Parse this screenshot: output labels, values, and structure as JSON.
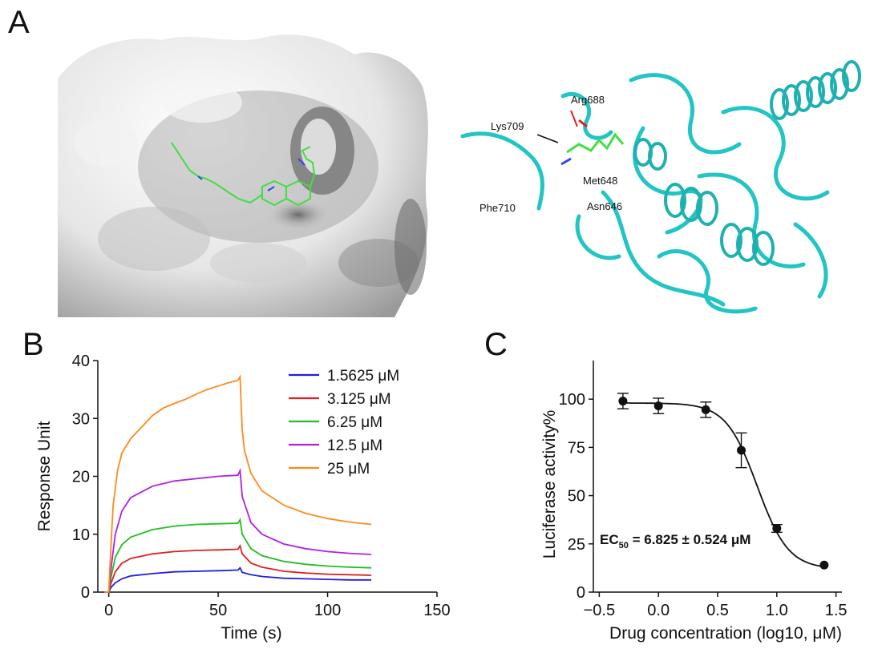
{
  "panels": {
    "a": "A",
    "b": "B",
    "c": "C"
  },
  "structure_labels": [
    "Arg688",
    "Lys709",
    "Met648",
    "Phe710",
    "Asn646"
  ],
  "colors": {
    "surface": "#d9d9d9",
    "protein": "#22c4c4",
    "ligand": "#44dd44",
    "nitrogen": "#3344ee",
    "oxygen": "#e02020"
  },
  "chart_data": [
    {
      "type": "line",
      "xlabel": "Time (s)",
      "ylabel": "Response Unit",
      "xlim": [
        -5,
        150
      ],
      "ylim": [
        0,
        40
      ],
      "xticks": [
        0,
        50,
        100,
        150
      ],
      "yticks": [
        0,
        10,
        20,
        30,
        40
      ],
      "legend_position": "top-right",
      "series": [
        {
          "name": "1.5625 μM",
          "color": "#1f1fe0",
          "x": [
            -2,
            0,
            1,
            3,
            6,
            10,
            20,
            30,
            40,
            50,
            59,
            60,
            61,
            65,
            70,
            80,
            90,
            100,
            110,
            120
          ],
          "y": [
            0,
            0,
            0.8,
            1.6,
            2.3,
            2.8,
            3.2,
            3.5,
            3.6,
            3.7,
            3.8,
            4.2,
            3.4,
            3.0,
            2.7,
            2.4,
            2.3,
            2.2,
            2.1,
            2.1
          ]
        },
        {
          "name": "3.125 μM",
          "color": "#e01f1f",
          "x": [
            -2,
            0,
            1,
            3,
            6,
            10,
            20,
            30,
            40,
            50,
            59,
            60,
            61,
            65,
            70,
            80,
            90,
            100,
            110,
            120
          ],
          "y": [
            0,
            0,
            1.5,
            3.5,
            5.0,
            5.8,
            6.6,
            7.0,
            7.2,
            7.3,
            7.4,
            8.0,
            6.6,
            5.0,
            4.3,
            3.6,
            3.3,
            3.1,
            3.0,
            2.9
          ]
        },
        {
          "name": "6.25 μM",
          "color": "#1fc01f",
          "x": [
            -2,
            0,
            1,
            3,
            6,
            10,
            20,
            30,
            40,
            50,
            59,
            60,
            61,
            65,
            70,
            80,
            90,
            100,
            110,
            120
          ],
          "y": [
            0,
            0,
            2.5,
            6.0,
            8.2,
            9.5,
            10.8,
            11.4,
            11.7,
            11.8,
            11.9,
            12.5,
            10.0,
            7.5,
            6.3,
            5.3,
            4.8,
            4.5,
            4.3,
            4.2
          ]
        },
        {
          "name": "12.5 μM",
          "color": "#b020e0",
          "x": [
            -2,
            0,
            1,
            3,
            6,
            10,
            20,
            30,
            40,
            50,
            59,
            60,
            61,
            65,
            70,
            80,
            90,
            100,
            110,
            120
          ],
          "y": [
            0,
            0,
            4.0,
            10.0,
            14.0,
            16.3,
            18.3,
            19.2,
            19.6,
            20.0,
            20.2,
            21.0,
            16.5,
            12.0,
            10.0,
            8.3,
            7.5,
            7.0,
            6.7,
            6.5
          ]
        },
        {
          "name": "25 μM",
          "color": "#ff8a1a",
          "x": [
            -2,
            0,
            1,
            2,
            4,
            6,
            10,
            15,
            20,
            25,
            30,
            35,
            40,
            45,
            50,
            55,
            59,
            60,
            61,
            62,
            65,
            70,
            80,
            90,
            100,
            110,
            120
          ],
          "y": [
            0,
            0,
            8,
            15,
            21,
            24,
            26.5,
            28.5,
            30.5,
            31.8,
            32.6,
            33.3,
            34.2,
            35.0,
            35.6,
            36.2,
            36.6,
            37.2,
            28,
            24.5,
            20.5,
            17.5,
            15.0,
            13.6,
            12.7,
            12.1,
            11.7
          ]
        }
      ]
    },
    {
      "type": "scatter",
      "xlabel": "Drug concentration (log10, μM)",
      "ylabel": "Luciferase activity%",
      "xlim": [
        -0.55,
        1.55
      ],
      "ylim": [
        0,
        120
      ],
      "xticks": [
        "−0.5",
        "0.0",
        "0.5",
        "1.0",
        "1.5"
      ],
      "yticks": [
        0,
        25,
        50,
        75,
        100
      ],
      "annotation": {
        "prefix": "EC",
        "subscript": "50",
        "suffix": " = 6.825 ± 0.524 μM"
      },
      "points": [
        {
          "x": -0.3,
          "y": 99,
          "err": 4
        },
        {
          "x": 0.0,
          "y": 96.5,
          "err": 4
        },
        {
          "x": 0.4,
          "y": 94.5,
          "err": 4
        },
        {
          "x": 0.7,
          "y": 73.5,
          "err": 9
        },
        {
          "x": 1.0,
          "y": 33,
          "err": 2
        },
        {
          "x": 1.4,
          "y": 14,
          "err": 0
        }
      ],
      "fit": {
        "top": 98,
        "bottom": 12,
        "log_ec50": 0.834,
        "hill": 3.3
      }
    }
  ]
}
